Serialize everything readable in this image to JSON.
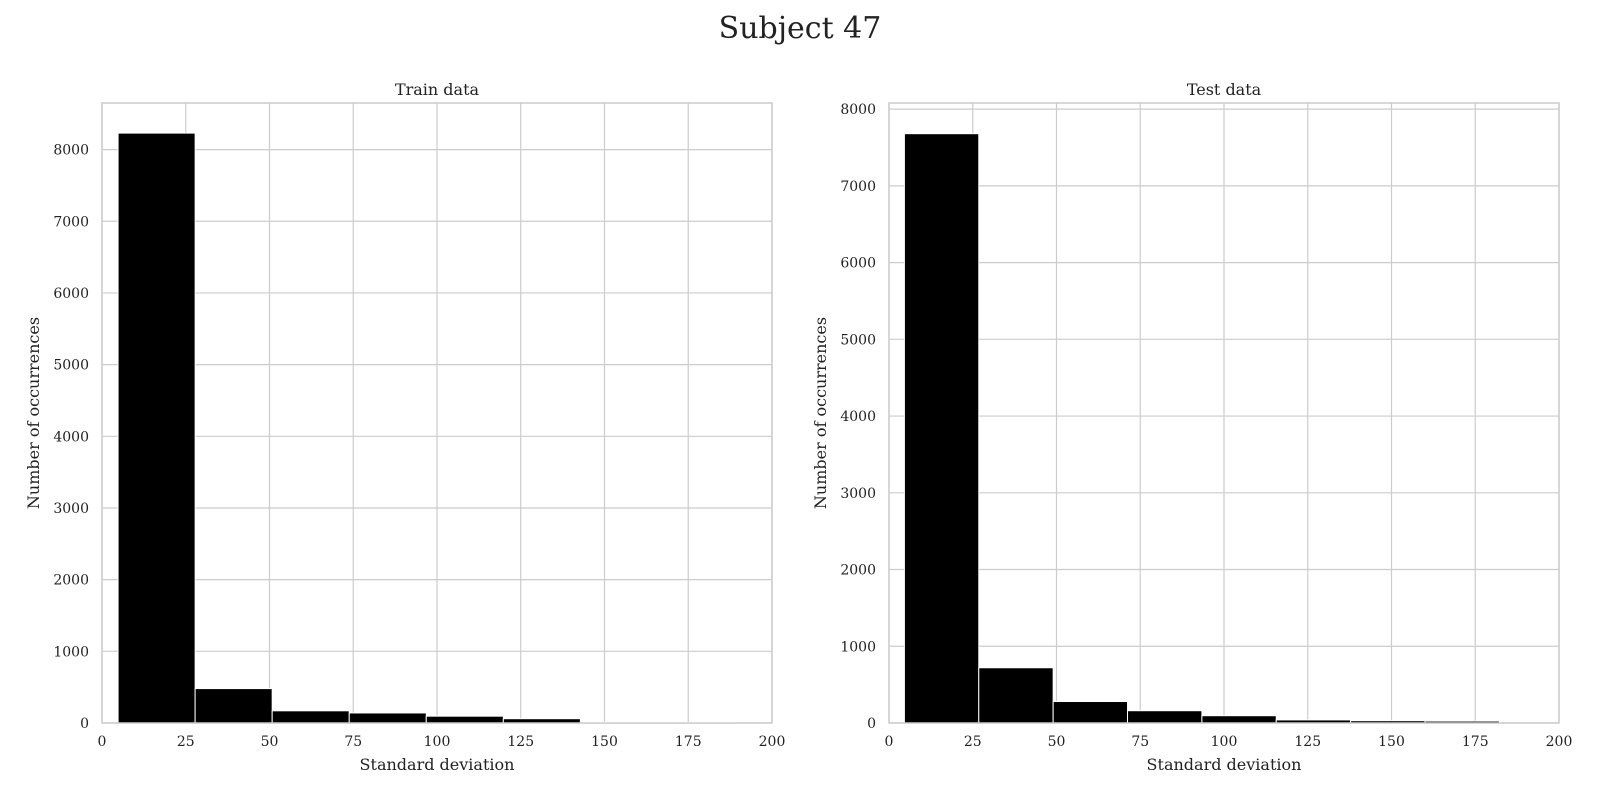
{
  "figure": {
    "title": "Subject 47"
  },
  "chart_data": [
    {
      "type": "bar",
      "title": "Train data",
      "xlabel": "Standard deviation",
      "ylabel": "Number of occurrences",
      "xlim": [
        0,
        200
      ],
      "ylim": [
        0,
        8650
      ],
      "xticks": [
        0,
        25,
        50,
        75,
        100,
        125,
        150,
        175,
        200
      ],
      "yticks": [
        0,
        1000,
        2000,
        3000,
        4000,
        5000,
        6000,
        7000,
        8000
      ],
      "grid": true,
      "bar_color": "#000000",
      "bins": [
        {
          "x0": 4.8,
          "x1": 27.8,
          "value": 8230
        },
        {
          "x0": 27.8,
          "x1": 50.8,
          "value": 480
        },
        {
          "x0": 50.8,
          "x1": 73.8,
          "value": 170
        },
        {
          "x0": 73.8,
          "x1": 96.8,
          "value": 140
        },
        {
          "x0": 96.8,
          "x1": 119.8,
          "value": 95
        },
        {
          "x0": 119.8,
          "x1": 142.8,
          "value": 60
        },
        {
          "x0": 142.8,
          "x1": 165.8,
          "value": 10
        },
        {
          "x0": 165.8,
          "x1": 188.8,
          "value": 8
        }
      ]
    },
    {
      "type": "bar",
      "title": "Test data",
      "xlabel": "Standard deviation",
      "ylabel": "Number of occurrences",
      "xlim": [
        0,
        200
      ],
      "ylim": [
        0,
        8080
      ],
      "xticks": [
        0,
        25,
        50,
        75,
        100,
        125,
        150,
        175,
        200
      ],
      "yticks": [
        0,
        1000,
        2000,
        3000,
        4000,
        5000,
        6000,
        7000,
        8000
      ],
      "grid": true,
      "bar_color": "#000000",
      "bins": [
        {
          "x0": 4.6,
          "x1": 26.8,
          "value": 7680
        },
        {
          "x0": 26.8,
          "x1": 49.0,
          "value": 720
        },
        {
          "x0": 49.0,
          "x1": 71.2,
          "value": 280
        },
        {
          "x0": 71.2,
          "x1": 93.4,
          "value": 160
        },
        {
          "x0": 93.4,
          "x1": 115.6,
          "value": 95
        },
        {
          "x0": 115.6,
          "x1": 137.8,
          "value": 40
        },
        {
          "x0": 137.8,
          "x1": 160.0,
          "value": 30
        },
        {
          "x0": 160.0,
          "x1": 182.2,
          "value": 25
        }
      ]
    }
  ]
}
